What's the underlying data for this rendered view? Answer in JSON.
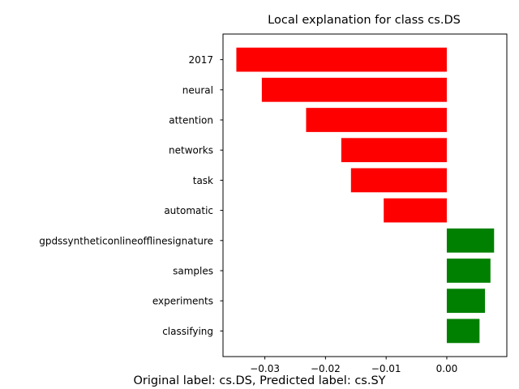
{
  "chart_data": {
    "type": "bar",
    "orientation": "horizontal",
    "title": "Local explanation for class cs.DS",
    "xlabel": "",
    "ylabel": "",
    "categories": [
      "2017",
      "neural",
      "attention",
      "networks",
      "task",
      "automatic",
      "gpdssyntheticonlineofflinesignature",
      "samples",
      "experiments",
      "classifying"
    ],
    "values": [
      -0.0347,
      -0.0305,
      -0.0232,
      -0.0174,
      -0.0158,
      -0.0104,
      0.0078,
      0.0072,
      0.0063,
      0.0054
    ],
    "xlim": [
      -0.0369,
      0.0099
    ],
    "xticks": [
      -0.03,
      -0.02,
      -0.01,
      0.0
    ],
    "xtick_labels": [
      "−0.03",
      "−0.02",
      "−0.01",
      "0.00"
    ],
    "grid": false,
    "colors": {
      "negative": "#ff0000",
      "positive": "#008000"
    }
  },
  "caption": "Original label: cs.DS, Predicted label: cs.SY"
}
